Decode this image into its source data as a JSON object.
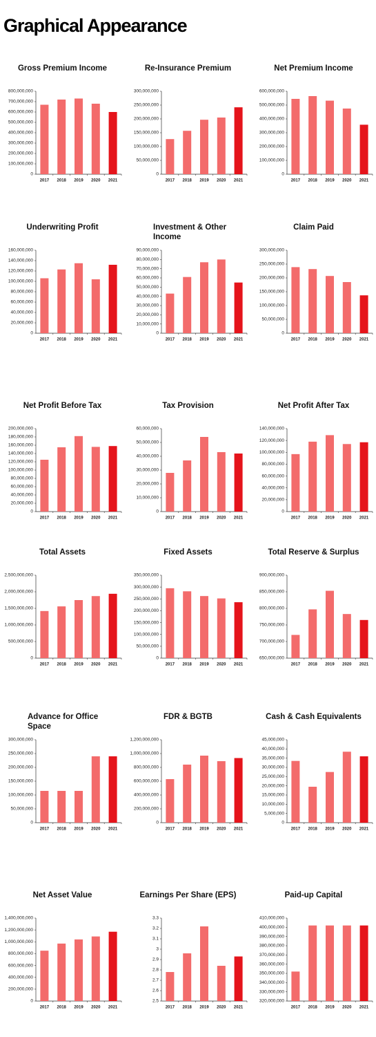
{
  "title": "Graphical Appearance",
  "chart_data": [
    {
      "type": "bar",
      "title": "Gross Premium Income",
      "categories": [
        "2017",
        "2018",
        "2019",
        "2020",
        "2021"
      ],
      "values": [
        670000000,
        720000000,
        730000000,
        680000000,
        600000000
      ],
      "colors": [
        "#f36b6b",
        "#f36b6b",
        "#f36b6b",
        "#f36b6b",
        "#e5141b"
      ],
      "ylim": [
        0,
        800000000
      ],
      "yticks": [
        0,
        {
          "value": 100000000,
          "label": "100,000,000"
        },
        {
          "value": 200000000,
          "label": "200,000,000"
        },
        {
          "value": 300000000,
          "label": "300,000,000"
        },
        {
          "value": 400000000,
          "label": "400,000,000"
        },
        {
          "value": 500000000,
          "label": "500,000,000"
        },
        {
          "value": 600000000,
          "label": "600,000,000"
        },
        {
          "value": 700000000,
          "label": "700,000,000"
        },
        {
          "value": 800000000,
          "label": "800,000,000"
        }
      ]
    },
    {
      "type": "bar",
      "title": "Re-Insurance Premium",
      "categories": [
        "2017",
        "2018",
        "2019",
        "2020",
        "2021"
      ],
      "values": [
        127000000,
        157000000,
        197000000,
        205000000,
        242000000
      ],
      "colors": [
        "#f36b6b",
        "#f36b6b",
        "#f36b6b",
        "#f36b6b",
        "#e5141b"
      ],
      "ylim": [
        0,
        300000000
      ],
      "yticks": [
        0,
        {
          "value": 50000000,
          "label": "50,000,000"
        },
        {
          "value": 100000000,
          "label": "100,000,000"
        },
        {
          "value": 150000000,
          "label": "150,000,000"
        },
        {
          "value": 200000000,
          "label": "200,000,000"
        },
        {
          "value": 250000000,
          "label": "250,000,000"
        },
        {
          "value": 300000000,
          "label": "300,000,000"
        }
      ]
    },
    {
      "type": "bar",
      "title": "Net Premium Income",
      "categories": [
        "2017",
        "2018",
        "2019",
        "2020",
        "2021"
      ],
      "values": [
        545000000,
        565000000,
        532000000,
        475000000,
        358000000
      ],
      "colors": [
        "#f36b6b",
        "#f36b6b",
        "#f36b6b",
        "#f36b6b",
        "#e5141b"
      ],
      "ylim": [
        0,
        600000000
      ],
      "yticks": [
        0,
        {
          "value": 100000000,
          "label": "100,000,000"
        },
        {
          "value": 200000000,
          "label": "200,000,000"
        },
        {
          "value": 300000000,
          "label": "300,000,000"
        },
        {
          "value": 400000000,
          "label": "400,000,000"
        },
        {
          "value": 500000000,
          "label": "500,000,000"
        },
        {
          "value": 600000000,
          "label": "600,000,000"
        }
      ]
    },
    {
      "type": "bar",
      "title": "Underwriting Profit",
      "categories": [
        "2017",
        "2018",
        "2019",
        "2020",
        "2021"
      ],
      "values": [
        106000000,
        123000000,
        135000000,
        104000000,
        132000000
      ],
      "colors": [
        "#f36b6b",
        "#f36b6b",
        "#f36b6b",
        "#f36b6b",
        "#e5141b"
      ],
      "ylim": [
        0,
        160000000
      ],
      "yticks": [
        0,
        {
          "value": 20000000,
          "label": "20,000,000"
        },
        {
          "value": 40000000,
          "label": "40,000,000"
        },
        {
          "value": 60000000,
          "label": "60,000,000"
        },
        {
          "value": 80000000,
          "label": "80,000,000"
        },
        {
          "value": 100000000,
          "label": "100,000,000"
        },
        {
          "value": 120000000,
          "label": "120,000,000"
        },
        {
          "value": 140000000,
          "label": "140,000,000"
        },
        {
          "value": 160000000,
          "label": "160,000,000"
        }
      ]
    },
    {
      "type": "bar",
      "title": "Investment & Other Income",
      "categories": [
        "2017",
        "2018",
        "2019",
        "2020",
        "2021"
      ],
      "values": [
        43000000,
        61000000,
        77000000,
        80000000,
        55000000
      ],
      "colors": [
        "#f36b6b",
        "#f36b6b",
        "#f36b6b",
        "#f36b6b",
        "#e5141b"
      ],
      "ylim": [
        0,
        90000000
      ],
      "yticks": [
        0,
        {
          "value": 10000000,
          "label": "10,000,000"
        },
        {
          "value": 20000000,
          "label": "20,000,000"
        },
        {
          "value": 30000000,
          "label": "30,000,000"
        },
        {
          "value": 40000000,
          "label": "40,000,000"
        },
        {
          "value": 50000000,
          "label": "50,000,000"
        },
        {
          "value": 60000000,
          "label": "60,000,000"
        },
        {
          "value": 70000000,
          "label": "70,000,000"
        },
        {
          "value": 80000000,
          "label": "80,000,000"
        },
        {
          "value": 90000000,
          "label": "90,000,000"
        }
      ]
    },
    {
      "type": "bar",
      "title": "Claim Paid",
      "categories": [
        "2017",
        "2018",
        "2019",
        "2020",
        "2021"
      ],
      "values": [
        239000000,
        232000000,
        207000000,
        185000000,
        137000000
      ],
      "colors": [
        "#f36b6b",
        "#f36b6b",
        "#f36b6b",
        "#f36b6b",
        "#e5141b"
      ],
      "ylim": [
        0,
        300000000
      ],
      "yticks": [
        0,
        {
          "value": 50000000,
          "label": "50,000,000"
        },
        {
          "value": 100000000,
          "label": "100,000,000"
        },
        {
          "value": 150000000,
          "label": "150,000,000"
        },
        {
          "value": 200000000,
          "label": "200,000,000"
        },
        {
          "value": 250000000,
          "label": "250,000,000"
        },
        {
          "value": 300000000,
          "label": "300,000,000"
        }
      ]
    },
    {
      "type": "bar",
      "title": "Net Profit Before Tax",
      "categories": [
        "2017",
        "2018",
        "2019",
        "2020",
        "2021"
      ],
      "values": [
        125000000,
        155000000,
        182000000,
        156000000,
        158000000
      ],
      "colors": [
        "#f36b6b",
        "#f36b6b",
        "#f36b6b",
        "#f36b6b",
        "#e5141b"
      ],
      "ylim": [
        0,
        200000000
      ],
      "yticks": [
        0,
        {
          "value": 20000000,
          "label": "20,000,000"
        },
        {
          "value": 40000000,
          "label": "40,000,000"
        },
        {
          "value": 60000000,
          "label": "60,000,000"
        },
        {
          "value": 80000000,
          "label": "80,000,000"
        },
        {
          "value": 100000000,
          "label": "100,000,000"
        },
        {
          "value": 120000000,
          "label": "120,000,000"
        },
        {
          "value": 140000000,
          "label": "140,000,000"
        },
        {
          "value": 160000000,
          "label": "160,000,000"
        },
        {
          "value": 180000000,
          "label": "180,000,000"
        },
        {
          "value": 200000000,
          "label": "200,000,000"
        }
      ]
    },
    {
      "type": "bar",
      "title": "Tax Provision",
      "categories": [
        "2017",
        "2018",
        "2019",
        "2020",
        "2021"
      ],
      "values": [
        28000000,
        37000000,
        54000000,
        43000000,
        42000000
      ],
      "colors": [
        "#f36b6b",
        "#f36b6b",
        "#f36b6b",
        "#f36b6b",
        "#e5141b"
      ],
      "ylim": [
        0,
        60000000
      ],
      "yticks": [
        0,
        {
          "value": 10000000,
          "label": "10,000,000"
        },
        {
          "value": 20000000,
          "label": "20,000,000"
        },
        {
          "value": 30000000,
          "label": "30,000,000"
        },
        {
          "value": 40000000,
          "label": "40,000,000"
        },
        {
          "value": 50000000,
          "label": "50,000,000"
        },
        {
          "value": 60000000,
          "label": "60,000,000"
        }
      ]
    },
    {
      "type": "bar",
      "title": "Net Profit After Tax",
      "categories": [
        "2017",
        "2018",
        "2019",
        "2020",
        "2021"
      ],
      "values": [
        97000000,
        118000000,
        129000000,
        114000000,
        117000000
      ],
      "colors": [
        "#f36b6b",
        "#f36b6b",
        "#f36b6b",
        "#f36b6b",
        "#e5141b"
      ],
      "ylim": [
        0,
        140000000
      ],
      "yticks": [
        0,
        {
          "value": 20000000,
          "label": "20,000,000"
        },
        {
          "value": 40000000,
          "label": "40,000,000"
        },
        {
          "value": 60000000,
          "label": "60,000,000"
        },
        {
          "value": 80000000,
          "label": "80,000,000"
        },
        {
          "value": 100000000,
          "label": "100,000,000"
        },
        {
          "value": 120000000,
          "label": "120,000,000"
        },
        {
          "value": 140000000,
          "label": "140,000,000"
        }
      ]
    },
    {
      "type": "bar",
      "title": "Total Assets",
      "categories": [
        "2017",
        "2018",
        "2019",
        "2020",
        "2021"
      ],
      "values": [
        1420000000,
        1560000000,
        1750000000,
        1870000000,
        1940000000
      ],
      "colors": [
        "#f36b6b",
        "#f36b6b",
        "#f36b6b",
        "#f36b6b",
        "#e5141b"
      ],
      "ylim": [
        0,
        2500000000
      ],
      "yticks": [
        0,
        {
          "value": 500000000,
          "label": "500,000,000"
        },
        {
          "value": 1000000000,
          "label": "1,000,000,000"
        },
        {
          "value": 1500000000,
          "label": "1,500,000,000"
        },
        {
          "value": 2000000000,
          "label": "2,000,000,000"
        },
        {
          "value": 2500000000,
          "label": "2,500,000,000"
        }
      ]
    },
    {
      "type": "bar",
      "title": "Fixed Assets",
      "categories": [
        "2017",
        "2018",
        "2019",
        "2020",
        "2021"
      ],
      "values": [
        295000000,
        282000000,
        262000000,
        252000000,
        236000000
      ],
      "colors": [
        "#f36b6b",
        "#f36b6b",
        "#f36b6b",
        "#f36b6b",
        "#e5141b"
      ],
      "ylim": [
        0,
        350000000
      ],
      "yticks": [
        0,
        {
          "value": 50000000,
          "label": "50,000,000"
        },
        {
          "value": 100000000,
          "label": "100,000,000"
        },
        {
          "value": 150000000,
          "label": "150,000,000"
        },
        {
          "value": 200000000,
          "label": "200,000,000"
        },
        {
          "value": 250000000,
          "label": "250,000,000"
        },
        {
          "value": 300000000,
          "label": "300,000,000"
        },
        {
          "value": 350000000,
          "label": "350,000,000"
        }
      ]
    },
    {
      "type": "bar",
      "title": "Total Reserve & Surplus",
      "categories": [
        "2017",
        "2018",
        "2019",
        "2020",
        "2021"
      ],
      "values": [
        720000000,
        797000000,
        853000000,
        783000000,
        765000000
      ],
      "colors": [
        "#f36b6b",
        "#f36b6b",
        "#f36b6b",
        "#f36b6b",
        "#e5141b"
      ],
      "ylim": [
        650000000,
        900000000
      ],
      "yticks": [
        {
          "value": 650000000,
          "label": "650,000,000"
        },
        {
          "value": 700000000,
          "label": "700,000,000"
        },
        {
          "value": 750000000,
          "label": "750,000,000"
        },
        {
          "value": 800000000,
          "label": "800,000,000"
        },
        {
          "value": 850000000,
          "label": "850,000,000"
        },
        {
          "value": 900000000,
          "label": "900,000,000"
        }
      ]
    },
    {
      "type": "bar",
      "title": "Advance for Office Space",
      "categories": [
        "2017",
        "2018",
        "2019",
        "2020",
        "2021"
      ],
      "values": [
        115000000,
        115000000,
        115000000,
        240000000,
        240000000
      ],
      "colors": [
        "#f36b6b",
        "#f36b6b",
        "#f36b6b",
        "#f36b6b",
        "#e5141b"
      ],
      "ylim": [
        0,
        300000000
      ],
      "yticks": [
        0,
        {
          "value": 50000000,
          "label": "50,000,000"
        },
        {
          "value": 100000000,
          "label": "100,000,000"
        },
        {
          "value": 150000000,
          "label": "150,000,000"
        },
        {
          "value": 200000000,
          "label": "200,000,000"
        },
        {
          "value": 250000000,
          "label": "250,000,000"
        },
        {
          "value": 300000000,
          "label": "300,000,000"
        }
      ]
    },
    {
      "type": "bar",
      "title": "FDR & BGTB",
      "categories": [
        "2017",
        "2018",
        "2019",
        "2020",
        "2021"
      ],
      "values": [
        630000000,
        840000000,
        970000000,
        890000000,
        935000000
      ],
      "colors": [
        "#f36b6b",
        "#f36b6b",
        "#f36b6b",
        "#f36b6b",
        "#e5141b"
      ],
      "ylim": [
        0,
        1200000000
      ],
      "yticks": [
        0,
        {
          "value": 200000000,
          "label": "200,000,000"
        },
        {
          "value": 400000000,
          "label": "400,000,000"
        },
        {
          "value": 600000000,
          "label": "600,000,000"
        },
        {
          "value": 800000000,
          "label": "800,000,000"
        },
        {
          "value": 1000000000,
          "label": "1,000,000,000"
        },
        {
          "value": 1200000000,
          "label": "1,200,000,000"
        }
      ]
    },
    {
      "type": "bar",
      "title": "Cash & Cash Equivalents",
      "categories": [
        "2017",
        "2018",
        "2019",
        "2020",
        "2021"
      ],
      "values": [
        33500000,
        19500000,
        27500000,
        38500000,
        36000000
      ],
      "colors": [
        "#f36b6b",
        "#f36b6b",
        "#f36b6b",
        "#f36b6b",
        "#e5141b"
      ],
      "ylim": [
        0,
        45000000
      ],
      "yticks": [
        0,
        {
          "value": 5000000,
          "label": "5,000,000"
        },
        {
          "value": 10000000,
          "label": "10,000,000"
        },
        {
          "value": 15000000,
          "label": "15,000,000"
        },
        {
          "value": 20000000,
          "label": "20,000,000"
        },
        {
          "value": 25000000,
          "label": "25,000,000"
        },
        {
          "value": 30000000,
          "label": "30,000,000"
        },
        {
          "value": 35000000,
          "label": "35,000,000"
        },
        {
          "value": 40000000,
          "label": "40,000,000"
        },
        {
          "value": 45000000,
          "label": "45,000,000"
        }
      ]
    },
    {
      "type": "bar",
      "title": "Net Asset Value",
      "categories": [
        "2017",
        "2018",
        "2019",
        "2020",
        "2021"
      ],
      "values": [
        850000000,
        970000000,
        1040000000,
        1090000000,
        1170000000
      ],
      "colors": [
        "#f36b6b",
        "#f36b6b",
        "#f36b6b",
        "#f36b6b",
        "#e5141b"
      ],
      "ylim": [
        0,
        1400000000
      ],
      "yticks": [
        0,
        {
          "value": 200000000,
          "label": "200,000,000"
        },
        {
          "value": 400000000,
          "label": "400,000,000"
        },
        {
          "value": 600000000,
          "label": "600,000,000"
        },
        {
          "value": 800000000,
          "label": "800,000,000"
        },
        {
          "value": 1000000000,
          "label": "1,000,000,000"
        },
        {
          "value": 1200000000,
          "label": "1,200,000,000"
        },
        {
          "value": 1400000000,
          "label": "1,400,000,000"
        }
      ]
    },
    {
      "type": "bar",
      "title": "Earnings Per Share (EPS)",
      "categories": [
        "2017",
        "2018",
        "2019",
        "2020",
        "2021"
      ],
      "values": [
        2.78,
        2.96,
        3.22,
        2.84,
        2.93
      ],
      "colors": [
        "#f36b6b",
        "#f36b6b",
        "#f36b6b",
        "#f36b6b",
        "#e5141b"
      ],
      "ylim": [
        2.5,
        3.3
      ],
      "yticks": [
        2.5,
        2.6,
        2.7,
        2.8,
        2.9,
        3,
        3.1,
        3.2,
        3.3
      ]
    },
    {
      "type": "bar",
      "title": "Paid-up Capital",
      "categories": [
        "2017",
        "2018",
        "2019",
        "2020",
        "2021"
      ],
      "values": [
        352000000,
        402000000,
        402000000,
        402000000,
        402000000
      ],
      "colors": [
        "#f36b6b",
        "#f36b6b",
        "#f36b6b",
        "#f36b6b",
        "#e5141b"
      ],
      "ylim": [
        320000000,
        410000000
      ],
      "yticks": [
        {
          "value": 320000000,
          "label": "320,000,000"
        },
        {
          "value": 330000000,
          "label": "330,000,000"
        },
        {
          "value": 340000000,
          "label": "340,000,000"
        },
        {
          "value": 350000000,
          "label": "350,000,000"
        },
        {
          "value": 360000000,
          "label": "360,000,000"
        },
        {
          "value": 370000000,
          "label": "370,000,000"
        },
        {
          "value": 380000000,
          "label": "380,000,000"
        },
        {
          "value": 390000000,
          "label": "390,000,000"
        },
        {
          "value": 400000000,
          "label": "400,000,000"
        },
        {
          "value": 410000000,
          "label": "410,000,000"
        }
      ]
    }
  ]
}
